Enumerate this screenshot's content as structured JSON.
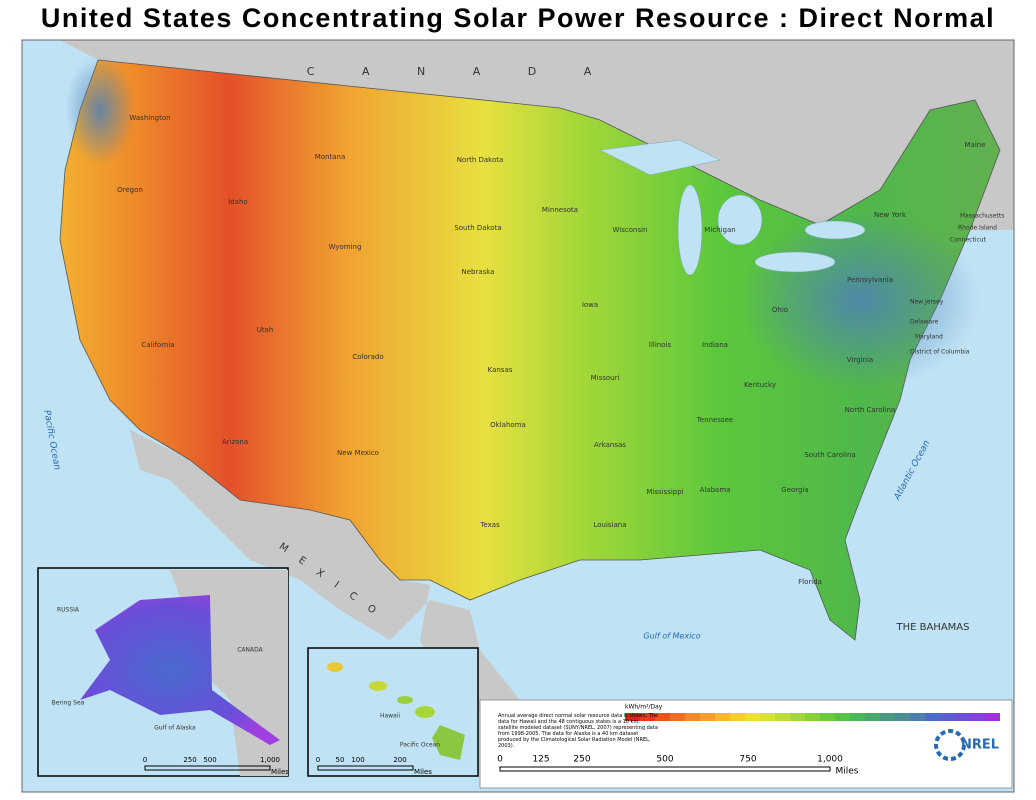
{
  "header": {
    "title": "United States Concentrating Solar Power Resource : Direct Normal"
  },
  "map_labels": {
    "countries": [
      "C A N A D A",
      "M E X I C O",
      "THE BAHAMAS"
    ],
    "water": [
      "Pacific Ocean",
      "Atlantic Ocean",
      "Gulf of Mexico"
    ],
    "states": [
      "Washington",
      "Oregon",
      "Idaho",
      "Montana",
      "Wyoming",
      "North Dakota",
      "South Dakota",
      "Nebraska",
      "California",
      "Utah",
      "Colorado",
      "Kansas",
      "Oklahoma",
      "Texas",
      "Arizona",
      "New Mexico",
      "Minnesota",
      "Iowa",
      "Missouri",
      "Arkansas",
      "Louisiana",
      "Mississippi",
      "Alabama",
      "Georgia",
      "Florida",
      "Tennessee",
      "Kentucky",
      "Illinois",
      "Indiana",
      "Ohio",
      "Michigan",
      "Wisconsin",
      "Pennsylvania",
      "New York",
      "Virginia",
      "North Carolina",
      "South Carolina",
      "Maine",
      "Massachusetts",
      "Rhode Island",
      "Connecticut",
      "New Jersey",
      "Delaware",
      "Maryland",
      "District of Columbia"
    ]
  },
  "alaska_inset": {
    "labels": [
      "RUSSIA",
      "CANADA",
      "Bering Sea",
      "Gulf of Alaska"
    ],
    "scale": [
      "0",
      "250",
      "500",
      "1,000"
    ],
    "scale_unit": "Miles"
  },
  "hawaii_inset": {
    "labels": [
      "Hawaii",
      "Pacific Ocean"
    ],
    "scale": [
      "0",
      "50",
      "100",
      "200"
    ],
    "scale_unit": "Miles"
  },
  "legend": {
    "unit": "kWh/m²/Day",
    "colors": [
      "#e0201c",
      "#e63a1e",
      "#ea5420",
      "#ee6e24",
      "#f28828",
      "#f5a02c",
      "#f7b830",
      "#f5cc32",
      "#eede36",
      "#d8e238",
      "#bedc38",
      "#a2d63a",
      "#86d03c",
      "#6cca3e",
      "#58c248",
      "#4ab658",
      "#48a86c",
      "#4a9a80",
      "#4c8c96",
      "#4e7eac",
      "#4a6cc4",
      "#5a5ed0",
      "#6e4ed8",
      "#8640dc",
      "#a030e0"
    ],
    "description": "Annual average direct normal solar resource data is shown. The data for Hawaii and the 48 contiguous states is a 10 km, satellite modeled dataset (SUNY/NREL, 2007) representing data from 1998-2005. The data for Alaska is a 40 km dataset produced by the Climatological Solar Radiation Model (NREL, 2003)."
  },
  "main_scale": {
    "ticks": [
      "0",
      "125",
      "250",
      "500",
      "750",
      "1,000"
    ],
    "unit": "Miles"
  },
  "logo": {
    "text": "NREL"
  }
}
